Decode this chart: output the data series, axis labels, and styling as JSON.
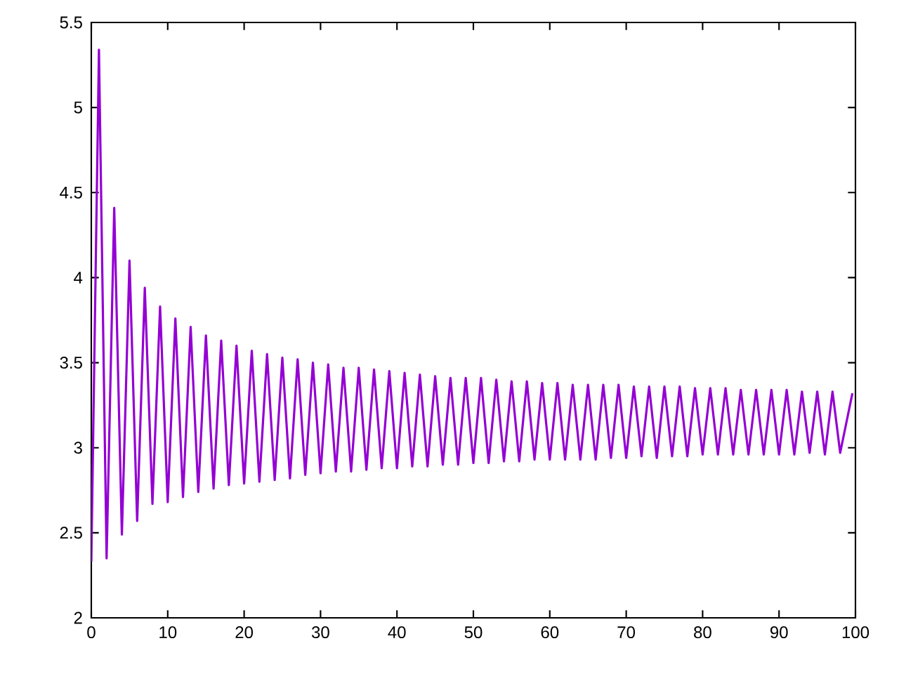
{
  "chart_data": {
    "type": "line",
    "x": [
      0,
      1,
      2,
      3,
      4,
      5,
      6,
      7,
      8,
      9,
      10,
      11,
      12,
      13,
      14,
      15,
      16,
      17,
      18,
      19,
      20,
      21,
      22,
      23,
      24,
      25,
      26,
      27,
      28,
      29,
      30,
      31,
      32,
      33,
      34,
      35,
      36,
      37,
      38,
      39,
      40,
      41,
      42,
      43,
      44,
      45,
      46,
      47,
      48,
      49,
      50,
      51,
      52,
      53,
      54,
      55,
      56,
      57,
      58,
      59,
      60,
      61,
      62,
      63,
      64,
      65,
      66,
      67,
      68,
      69,
      70,
      71,
      72,
      73,
      74,
      75,
      76,
      77,
      78,
      79,
      80,
      81,
      82,
      83,
      84,
      85,
      86,
      87,
      88,
      89,
      90,
      91,
      92,
      93,
      94,
      95,
      96,
      97,
      98,
      99.6
    ],
    "series": [
      {
        "color": "#9400d3",
        "values": [
          2.33,
          5.34,
          2.35,
          4.41,
          2.49,
          4.1,
          2.57,
          3.94,
          2.67,
          3.83,
          2.68,
          3.76,
          2.71,
          3.71,
          2.74,
          3.66,
          2.76,
          3.63,
          2.78,
          3.6,
          2.79,
          3.57,
          2.8,
          3.55,
          2.81,
          3.53,
          2.82,
          3.52,
          2.84,
          3.5,
          2.85,
          3.49,
          2.86,
          3.47,
          2.86,
          3.47,
          2.87,
          3.46,
          2.88,
          3.45,
          2.88,
          3.44,
          2.89,
          3.43,
          2.89,
          3.42,
          2.9,
          3.41,
          2.9,
          3.41,
          2.91,
          3.41,
          2.91,
          3.4,
          2.92,
          3.39,
          2.92,
          3.39,
          2.93,
          3.38,
          2.93,
          3.38,
          2.93,
          3.37,
          2.93,
          3.37,
          2.93,
          3.37,
          2.94,
          3.37,
          2.94,
          3.36,
          2.95,
          3.36,
          2.94,
          3.36,
          2.95,
          3.36,
          2.95,
          3.35,
          2.96,
          3.35,
          2.96,
          3.35,
          2.96,
          3.34,
          2.96,
          3.34,
          2.96,
          3.34,
          2.96,
          3.34,
          2.96,
          3.33,
          2.97,
          3.33,
          2.96,
          3.33,
          2.97,
          3.32
        ]
      }
    ],
    "xlim": [
      0,
      100
    ],
    "ylim": [
      2,
      5.5
    ],
    "xticks": [
      0,
      10,
      20,
      30,
      40,
      50,
      60,
      70,
      80,
      90,
      100
    ],
    "yticks": [
      2,
      2.5,
      3,
      3.5,
      4,
      4.5,
      5,
      5.5
    ]
  }
}
